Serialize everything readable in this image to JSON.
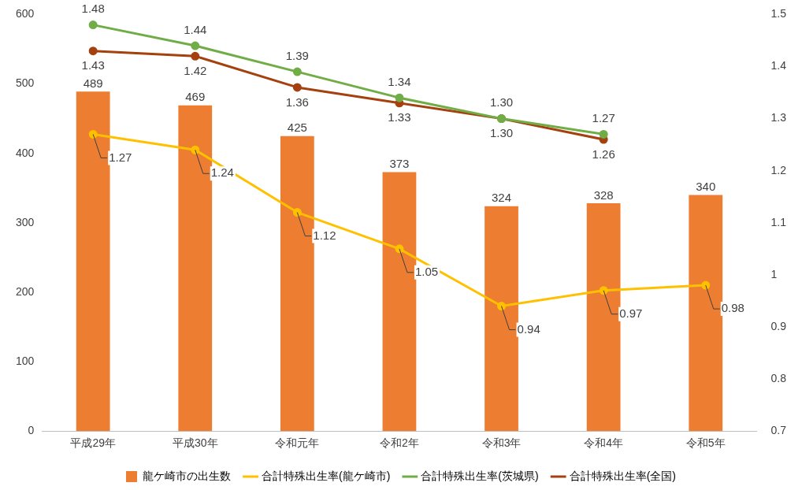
{
  "chart_data": {
    "type": "bar",
    "categories": [
      "平成29年",
      "平成30年",
      "令和元年",
      "令和2年",
      "令和3年",
      "令和4年",
      "令和5年"
    ],
    "series": [
      {
        "name": "龍ケ崎市の出生数",
        "color": "#ed7d31",
        "values": [
          489,
          469,
          425,
          373,
          324,
          328,
          340
        ],
        "value_labels": [
          "489",
          "469",
          "425",
          "373",
          "324",
          "328",
          "340"
        ]
      },
      {
        "name": "合計特殊出生率(龍ケ崎市)",
        "type": "line",
        "axis": "y2",
        "color": "#ffc000",
        "values": [
          1.27,
          1.24,
          1.12,
          1.05,
          0.94,
          0.97,
          0.98
        ],
        "value_labels": [
          "1.27",
          "1.24",
          "1.12",
          "1.05",
          "0.94",
          "0.97",
          "0.98"
        ]
      },
      {
        "name": "合計特殊出生率(茨城県)",
        "type": "line",
        "axis": "y2",
        "color": "#70ad47",
        "values": [
          1.48,
          1.44,
          1.39,
          1.34,
          1.3,
          1.27,
          null
        ],
        "value_labels": [
          "1.48",
          "1.44",
          "1.39",
          "1.34",
          "1.30",
          "1.27",
          null
        ]
      },
      {
        "name": "合計特殊出生率(全国)",
        "type": "line",
        "axis": "y2",
        "color": "#a5410f",
        "values": [
          1.43,
          1.42,
          1.36,
          1.33,
          1.3,
          1.26,
          null
        ],
        "value_labels": [
          "1.43",
          "1.42",
          "1.36",
          "1.33",
          "1.30",
          "1.26",
          null
        ]
      }
    ],
    "ylim": [
      0,
      600
    ],
    "yticks": [
      0,
      100,
      200,
      300,
      400,
      500,
      600
    ],
    "y2lim": [
      0.7,
      1.5
    ],
    "y2ticks": [
      0.7,
      0.8,
      0.9,
      1,
      1.1,
      1.2,
      1.3,
      1.4,
      1.5
    ],
    "marker": "circle",
    "grid": false,
    "legend": "bottom"
  }
}
